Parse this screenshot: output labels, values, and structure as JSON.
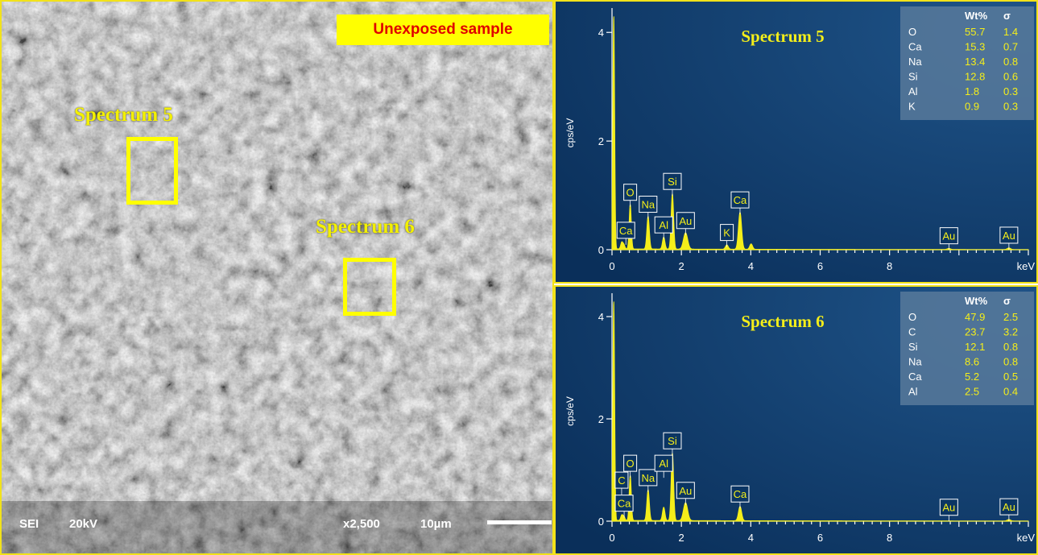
{
  "sem": {
    "sample_label": "Unexposed sample",
    "regions": [
      {
        "label": "Spectrum 5"
      },
      {
        "label": "Spectrum 6"
      }
    ],
    "footer": {
      "mode": "SEI",
      "voltage": "20kV",
      "magnification": "x2,500",
      "scale": "10µm"
    }
  },
  "chart_data": [
    {
      "type": "line",
      "title": "Spectrum 5",
      "xlabel": "keV",
      "ylabel": "cps/eV",
      "xlim": [
        0,
        12
      ],
      "ylim": [
        0,
        4.3
      ],
      "xticks": [
        0,
        2,
        4,
        6,
        8
      ],
      "yticks": [
        2,
        4
      ],
      "table": {
        "headers": [
          "",
          "Wt%",
          "σ"
        ],
        "rows": [
          [
            "O",
            "55.7",
            "1.4"
          ],
          [
            "Ca",
            "15.3",
            "0.7"
          ],
          [
            "Na",
            "13.4",
            "0.8"
          ],
          [
            "Si",
            "12.8",
            "0.6"
          ],
          [
            "Al",
            "1.8",
            "0.3"
          ],
          [
            "K",
            "0.9",
            "0.3"
          ]
        ]
      },
      "peaks": [
        {
          "x": 0.05,
          "y": 4.3,
          "w": 0.025
        },
        {
          "x": 0.28,
          "y": 0.12,
          "w": 0.03
        },
        {
          "x": 0.34,
          "y": 0.08,
          "w": 0.03
        },
        {
          "x": 0.525,
          "y": 0.82,
          "w": 0.03
        },
        {
          "x": 1.04,
          "y": 0.6,
          "w": 0.035
        },
        {
          "x": 1.49,
          "y": 0.22,
          "w": 0.035
        },
        {
          "x": 1.74,
          "y": 1.02,
          "w": 0.035
        },
        {
          "x": 2.12,
          "y": 0.3,
          "w": 0.06
        },
        {
          "x": 3.31,
          "y": 0.08,
          "w": 0.04
        },
        {
          "x": 3.69,
          "y": 0.68,
          "w": 0.045
        },
        {
          "x": 4.01,
          "y": 0.1,
          "w": 0.04
        },
        {
          "x": 9.71,
          "y": 0.02,
          "w": 0.05
        },
        {
          "x": 11.44,
          "y": 0.03,
          "w": 0.05
        }
      ],
      "labels": [
        {
          "text": "Ca",
          "x": 0.4,
          "y": 0.12
        },
        {
          "text": "O",
          "x": 0.525,
          "y": 0.82
        },
        {
          "text": "Na",
          "x": 1.04,
          "y": 0.6
        },
        {
          "text": "Al",
          "x": 1.49,
          "y": 0.22
        },
        {
          "text": "Si",
          "x": 1.74,
          "y": 1.02
        },
        {
          "text": "Au",
          "x": 2.12,
          "y": 0.3
        },
        {
          "text": "K",
          "x": 3.31,
          "y": 0.08
        },
        {
          "text": "Ca",
          "x": 3.69,
          "y": 0.68
        },
        {
          "text": "Au",
          "x": 9.71,
          "y": 0.02
        },
        {
          "text": "Au",
          "x": 11.44,
          "y": 0.03
        }
      ]
    },
    {
      "type": "line",
      "title": "Spectrum 6",
      "xlabel": "keV",
      "ylabel": "cps/eV",
      "xlim": [
        0,
        12
      ],
      "ylim": [
        0,
        4.3
      ],
      "xticks": [
        0,
        2,
        4,
        6,
        8
      ],
      "yticks": [
        2,
        4
      ],
      "table": {
        "headers": [
          "",
          "Wt%",
          "σ"
        ],
        "rows": [
          [
            "O",
            "47.9",
            "2.5"
          ],
          [
            "C",
            "23.7",
            "3.2"
          ],
          [
            "Si",
            "12.1",
            "0.8"
          ],
          [
            "Na",
            "8.6",
            "0.8"
          ],
          [
            "Ca",
            "5.2",
            "0.5"
          ],
          [
            "Al",
            "2.5",
            "0.4"
          ]
        ]
      },
      "peaks": [
        {
          "x": 0.05,
          "y": 4.3,
          "w": 0.025
        },
        {
          "x": 0.28,
          "y": 0.1,
          "w": 0.03
        },
        {
          "x": 0.34,
          "y": 0.08,
          "w": 0.03
        },
        {
          "x": 0.525,
          "y": 0.88,
          "w": 0.03
        },
        {
          "x": 1.04,
          "y": 0.6,
          "w": 0.035
        },
        {
          "x": 1.49,
          "y": 0.26,
          "w": 0.035
        },
        {
          "x": 1.74,
          "y": 1.32,
          "w": 0.035
        },
        {
          "x": 2.12,
          "y": 0.35,
          "w": 0.06
        },
        {
          "x": 3.69,
          "y": 0.28,
          "w": 0.045
        },
        {
          "x": 11.44,
          "y": 0.03,
          "w": 0.05
        }
      ],
      "labels": [
        {
          "text": "C",
          "x": 0.277,
          "y": 0.55
        },
        {
          "text": "Ca",
          "x": 0.35,
          "y": 0.1
        },
        {
          "text": "O",
          "x": 0.525,
          "y": 0.88
        },
        {
          "text": "Na",
          "x": 1.04,
          "y": 0.6
        },
        {
          "text": "Al",
          "x": 1.49,
          "y": 0.88
        },
        {
          "text": "Si",
          "x": 1.74,
          "y": 1.32
        },
        {
          "text": "Au",
          "x": 2.12,
          "y": 0.35
        },
        {
          "text": "Ca",
          "x": 3.69,
          "y": 0.28
        },
        {
          "text": "Au",
          "x": 9.71,
          "y": 0.02
        },
        {
          "text": "Au",
          "x": 11.44,
          "y": 0.03
        }
      ]
    }
  ]
}
